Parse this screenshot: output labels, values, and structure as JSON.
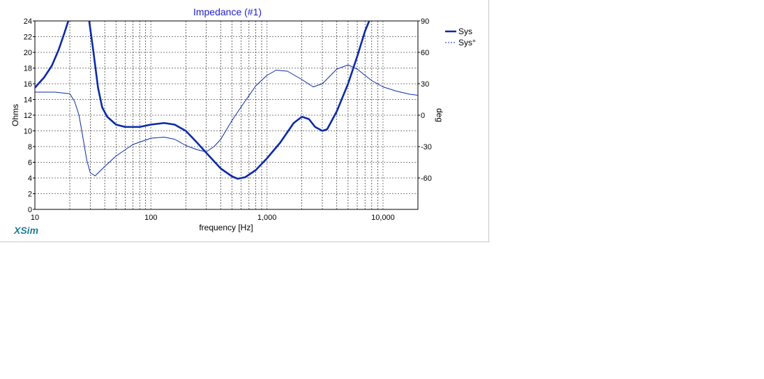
{
  "brand": "XSim",
  "colors": {
    "series": "#0a2aa8",
    "title": "#2020d0",
    "grid": "#7f7f7f",
    "brand": "#1f7d95"
  },
  "chart_data": {
    "type": "line",
    "title": "Impedance (#1)",
    "xlabel": "frequency [Hz]",
    "ylabel": "Ohms",
    "y2label": "deg",
    "xscale": "log",
    "xlim": [
      10,
      20000
    ],
    "ylim": [
      0,
      24
    ],
    "y2lim": [
      -90,
      90
    ],
    "grid": true,
    "legend_position": "right",
    "xticks": [
      {
        "v": 10,
        "label": "10"
      },
      {
        "v": 100,
        "label": "100"
      },
      {
        "v": 1000,
        "label": "1,000"
      },
      {
        "v": 10000,
        "label": "10,000"
      }
    ],
    "yticks": [
      "0",
      "2",
      "4",
      "6",
      "8",
      "10",
      "12",
      "14",
      "16",
      "18",
      "20",
      "22",
      "24"
    ],
    "y2ticks": [
      "-60",
      "-30",
      "0",
      "30",
      "60",
      "90"
    ],
    "series": [
      {
        "name": "Sys",
        "axis": "left",
        "style": "thick",
        "points": [
          [
            10,
            15.5
          ],
          [
            12,
            16.8
          ],
          [
            14,
            18.3
          ],
          [
            16,
            20.3
          ],
          [
            18,
            22.5
          ],
          [
            20,
            24.6
          ],
          [
            29,
            24.6
          ],
          [
            32,
            20
          ],
          [
            35,
            15.5
          ],
          [
            38,
            13
          ],
          [
            42,
            11.8
          ],
          [
            50,
            10.8
          ],
          [
            60,
            10.5
          ],
          [
            80,
            10.5
          ],
          [
            100,
            10.8
          ],
          [
            130,
            11
          ],
          [
            160,
            10.8
          ],
          [
            200,
            10
          ],
          [
            250,
            8.5
          ],
          [
            300,
            7.2
          ],
          [
            400,
            5.2
          ],
          [
            500,
            4.2
          ],
          [
            560,
            3.9
          ],
          [
            650,
            4.1
          ],
          [
            800,
            5
          ],
          [
            1000,
            6.5
          ],
          [
            1300,
            8.5
          ],
          [
            1700,
            11
          ],
          [
            2000,
            11.8
          ],
          [
            2300,
            11.5
          ],
          [
            2600,
            10.5
          ],
          [
            3000,
            10
          ],
          [
            3300,
            10.2
          ],
          [
            4000,
            12.5
          ],
          [
            5000,
            16
          ],
          [
            6000,
            19.5
          ],
          [
            7000,
            22.7
          ],
          [
            8000,
            24.8
          ]
        ]
      },
      {
        "name": "Sys°",
        "axis": "right",
        "style": "dashed",
        "points": [
          [
            10,
            22
          ],
          [
            13,
            22
          ],
          [
            15,
            22
          ],
          [
            18,
            21
          ],
          [
            20,
            20.5
          ],
          [
            22,
            13
          ],
          [
            24,
            0
          ],
          [
            26,
            -22
          ],
          [
            28,
            -43
          ],
          [
            30,
            -55
          ],
          [
            33,
            -58
          ],
          [
            36,
            -54
          ],
          [
            40,
            -49
          ],
          [
            50,
            -39
          ],
          [
            70,
            -28
          ],
          [
            100,
            -22
          ],
          [
            130,
            -21
          ],
          [
            160,
            -23
          ],
          [
            200,
            -29
          ],
          [
            250,
            -33
          ],
          [
            300,
            -35
          ],
          [
            350,
            -30
          ],
          [
            400,
            -23
          ],
          [
            500,
            -5
          ],
          [
            600,
            8
          ],
          [
            800,
            28
          ],
          [
            1000,
            38
          ],
          [
            1200,
            43
          ],
          [
            1500,
            42
          ],
          [
            2000,
            34
          ],
          [
            2500,
            27
          ],
          [
            3000,
            30
          ],
          [
            4000,
            44
          ],
          [
            5000,
            48
          ],
          [
            6000,
            44
          ],
          [
            7000,
            38
          ],
          [
            8000,
            33
          ],
          [
            10000,
            27
          ],
          [
            13000,
            23
          ],
          [
            17000,
            20
          ],
          [
            20000,
            19
          ]
        ]
      }
    ]
  }
}
